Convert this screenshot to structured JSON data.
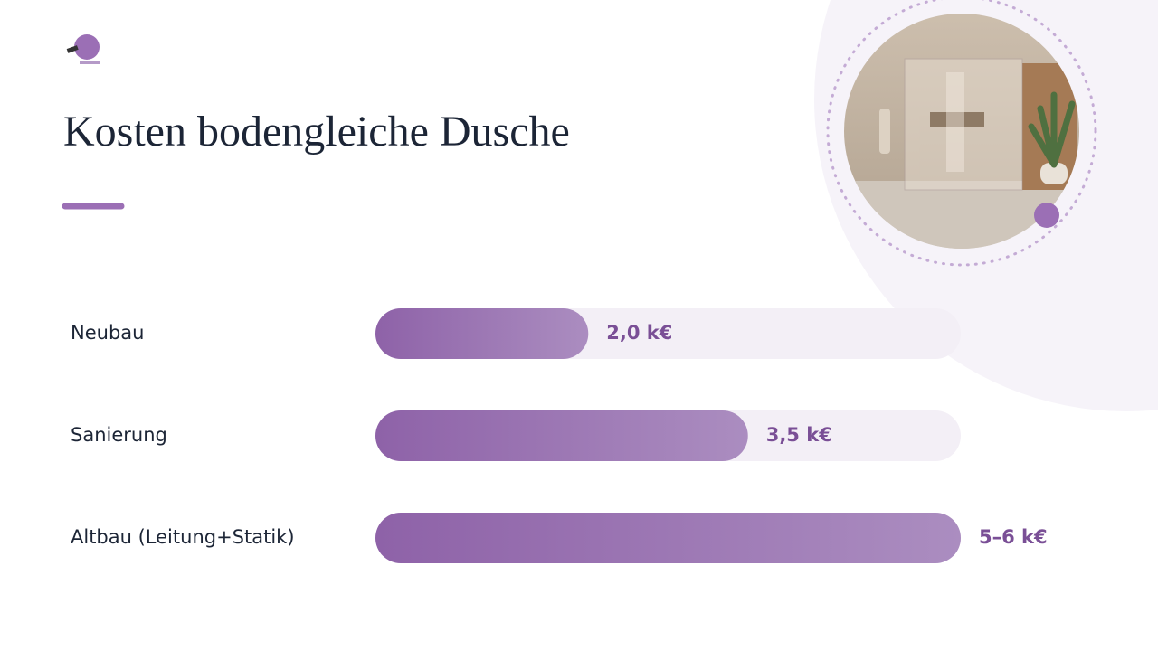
{
  "chart_data": {
    "type": "bar",
    "orientation": "horizontal",
    "title": "Kosten bodengleiche Dusche",
    "categories": [
      "Neubau",
      "Sanierung",
      "Altbau (Leitung+Statik)"
    ],
    "values": [
      2.0,
      3.5,
      5.5
    ],
    "value_labels": [
      "2,0 k€",
      "3,5 k€",
      "5–6 k€"
    ],
    "xlim": [
      0,
      5.5
    ],
    "color": "#9b6fb5",
    "track_color": "#f3eff6"
  }
}
